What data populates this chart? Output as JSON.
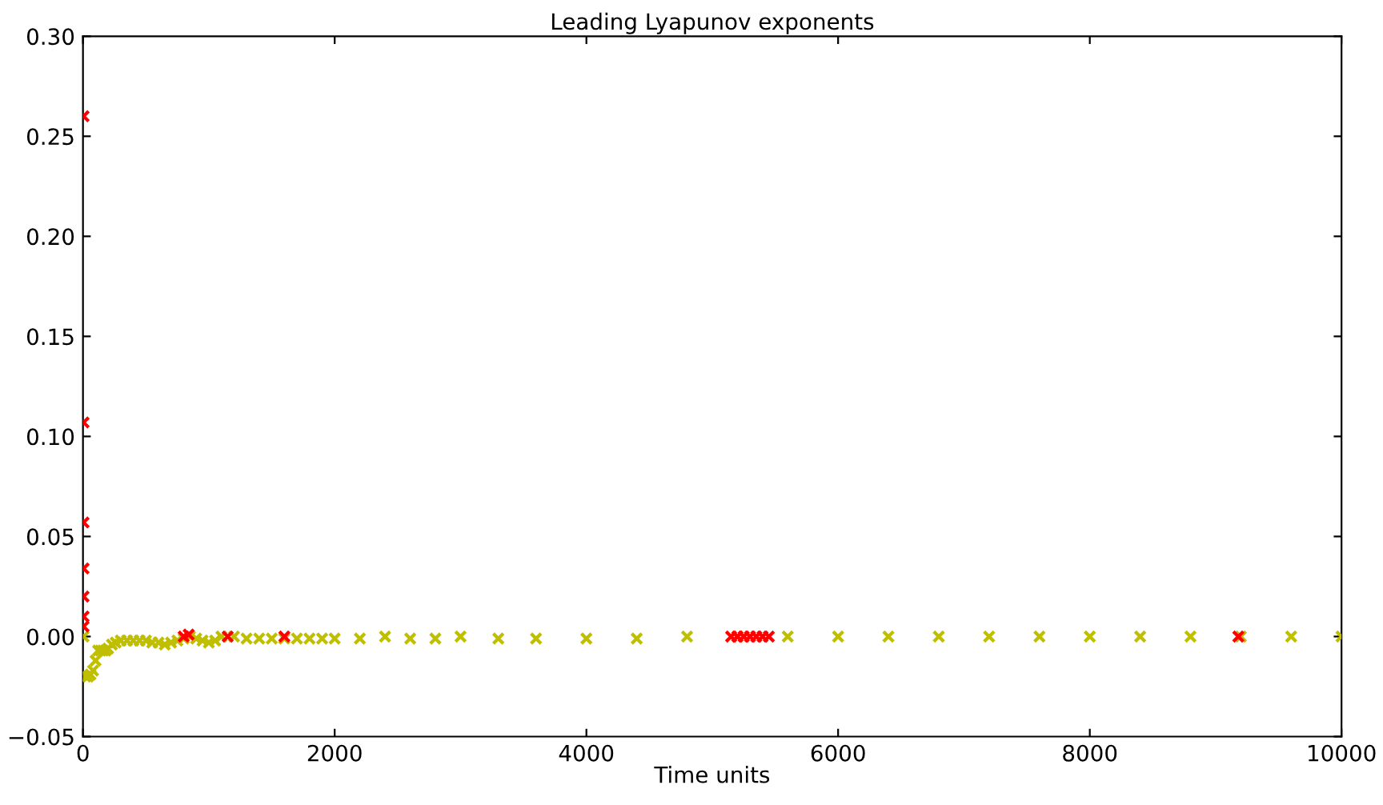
{
  "chart_data": {
    "type": "scatter",
    "title": "Leading Lyapunov exponents",
    "xlabel": "Time units",
    "marker": "cross",
    "grid": false,
    "legend": false,
    "xlim": [
      0,
      10000
    ],
    "ylim": [
      -0.05,
      0.3
    ],
    "xticks": [
      0,
      2000,
      4000,
      6000,
      8000,
      10000
    ],
    "yticks": [
      {
        "value": -0.05,
        "label": "−0.05"
      },
      {
        "value": 0.0,
        "label": "0.00"
      },
      0.05,
      {
        "value": 0.1,
        "label": "0.10"
      },
      0.15,
      {
        "value": 0.2,
        "label": "0.20"
      },
      0.25,
      {
        "value": 0.3,
        "label": "0.30"
      }
    ],
    "series": [
      {
        "color": "#bfbf00",
        "x": [
          5,
          20,
          40,
          60,
          80,
          100,
          120,
          140,
          160,
          180,
          200,
          230,
          260,
          300,
          350,
          400,
          450,
          500,
          550,
          600,
          650,
          700,
          750,
          800,
          850,
          900,
          950,
          1000,
          1050,
          1100,
          1200,
          1300,
          1400,
          1500,
          1600,
          1700,
          1800,
          1900,
          2000,
          2200,
          2400,
          2600,
          2800,
          3000,
          3300,
          3600,
          4000,
          4400,
          4800,
          5200,
          5600,
          6000,
          6400,
          6800,
          7200,
          7600,
          8000,
          8400,
          8800,
          9200,
          9600,
          10000
        ],
        "values": [
          0.0,
          -0.02,
          -0.02,
          -0.019,
          -0.017,
          -0.012,
          -0.007,
          -0.007,
          -0.007,
          -0.007,
          -0.006,
          -0.004,
          -0.003,
          -0.002,
          -0.002,
          -0.002,
          -0.002,
          -0.002,
          -0.003,
          -0.003,
          -0.004,
          -0.003,
          -0.002,
          -0.001,
          0.0,
          -0.001,
          -0.002,
          -0.003,
          -0.002,
          0.0,
          0.0,
          -0.001,
          -0.001,
          -0.001,
          -0.001,
          -0.001,
          -0.001,
          -0.001,
          -0.001,
          -0.001,
          0.0,
          -0.001,
          -0.001,
          0.0,
          -0.001,
          -0.001,
          -0.001,
          -0.001,
          0.0,
          0.0,
          0.0,
          0.0,
          0.0,
          0.0,
          0.0,
          0.0,
          0.0,
          0.0,
          0.0,
          0.0,
          0.0,
          0.0
        ]
      },
      {
        "color": "#ff0000",
        "x": [
          5,
          5,
          5,
          5,
          5,
          5,
          5,
          800,
          840,
          1150,
          1600,
          5150,
          5200,
          5250,
          5300,
          5350,
          5400,
          5450,
          9180
        ],
        "values": [
          0.26,
          0.107,
          0.057,
          0.034,
          0.02,
          0.01,
          0.005,
          0.0,
          0.001,
          0.0,
          0.0,
          0.0,
          0.0,
          0.0,
          0.0,
          0.0,
          0.0,
          0.0,
          0.0
        ]
      }
    ]
  }
}
